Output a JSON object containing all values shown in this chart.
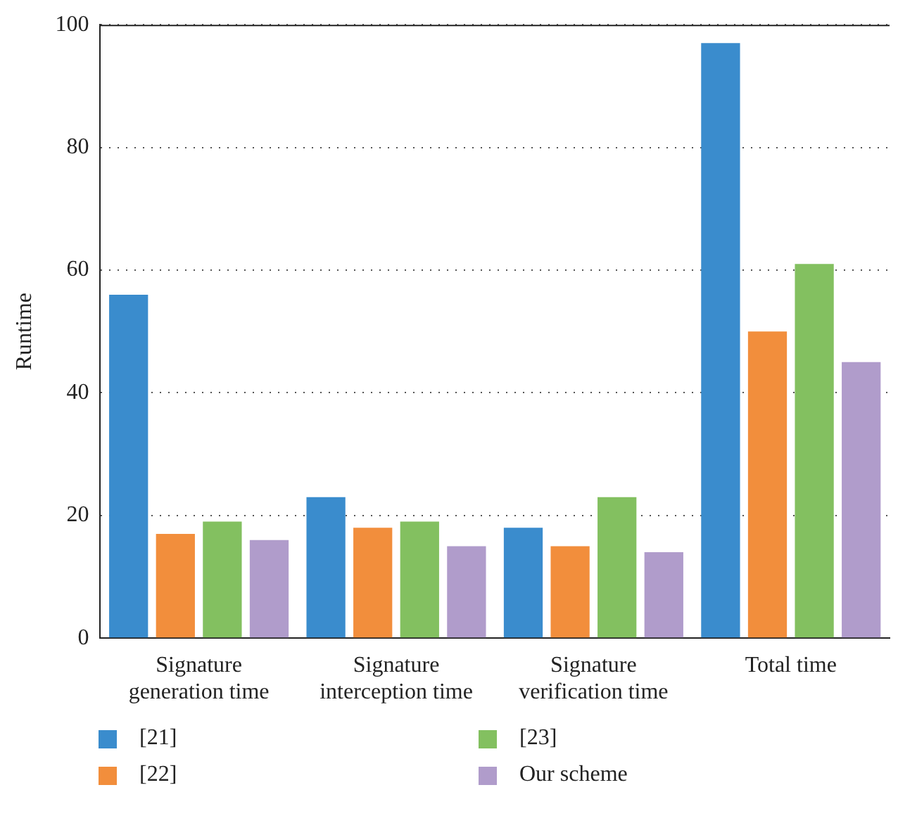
{
  "chart_data": {
    "type": "bar",
    "ylabel": "Runtime",
    "categories": [
      "Signature generation time",
      "Signature interception time",
      "Signature verification time",
      "Total time"
    ],
    "series": [
      {
        "name": "[21]",
        "color": "#3a8ccd",
        "values": [
          56,
          23,
          18,
          97
        ]
      },
      {
        "name": "[22]",
        "color": "#f28e3c",
        "values": [
          17,
          18,
          15,
          50
        ]
      },
      {
        "name": "[23]",
        "color": "#83c060",
        "values": [
          19,
          19,
          23,
          61
        ]
      },
      {
        "name": "Our scheme",
        "color": "#b09ccb",
        "values": [
          16,
          15,
          14,
          45
        ]
      }
    ],
    "ylim": [
      0,
      100
    ],
    "yticks": [
      0,
      20,
      40,
      60,
      80,
      100
    ],
    "grid": "y",
    "legend": "bottom"
  }
}
